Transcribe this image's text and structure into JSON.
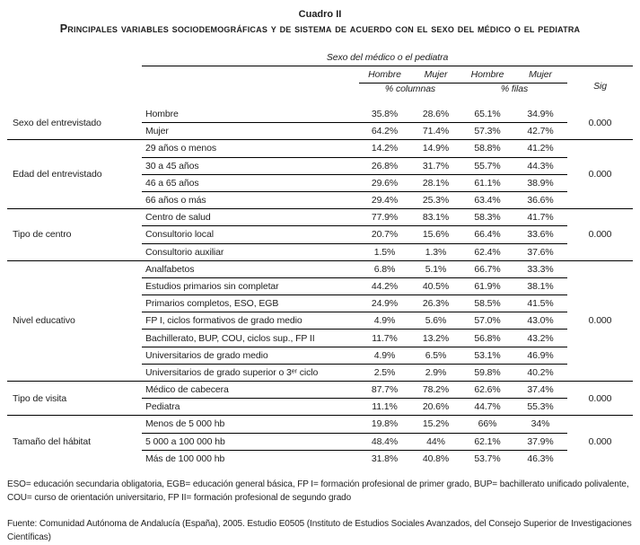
{
  "title": {
    "line1": "Cuadro II",
    "line2": "Principales variables sociodemográficas y de sistema de acuerdo con el sexo del médico o el pediatra"
  },
  "table": {
    "spanner": "Sexo del médico o el pediatra",
    "col_headers": [
      "Hombre",
      "Mujer",
      "Hombre",
      "Mujer"
    ],
    "subspanners": [
      "% columnas",
      "% filas"
    ],
    "sig_header": "Sig",
    "groups": [
      {
        "variable": "Sexo del entrevistado",
        "sig": "0.000",
        "rows": [
          {
            "category": "Hombre",
            "values": [
              "35.8%",
              "28.6%",
              "65.1%",
              "34.9%"
            ]
          },
          {
            "category": "Mujer",
            "values": [
              "64.2%",
              "71.4%",
              "57.3%",
              "42.7%"
            ]
          }
        ]
      },
      {
        "variable": "Edad del entrevistado",
        "sig": "0.000",
        "rows": [
          {
            "category": "29 años o menos",
            "values": [
              "14.2%",
              "14.9%",
              "58.8%",
              "41.2%"
            ]
          },
          {
            "category": "30 a 45 años",
            "values": [
              "26.8%",
              "31.7%",
              "55.7%",
              "44.3%"
            ]
          },
          {
            "category": "46 a 65 años",
            "values": [
              "29.6%",
              "28.1%",
              "61.1%",
              "38.9%"
            ]
          },
          {
            "category": "66 años o más",
            "values": [
              "29.4%",
              "25.3%",
              "63.4%",
              "36.6%"
            ]
          }
        ]
      },
      {
        "variable": "Tipo de centro",
        "sig": "0.000",
        "rows": [
          {
            "category": "Centro de salud",
            "values": [
              "77.9%",
              "83.1%",
              "58.3%",
              "41.7%"
            ]
          },
          {
            "category": "Consultorio local",
            "values": [
              "20.7%",
              "15.6%",
              "66.4%",
              "33.6%"
            ]
          },
          {
            "category": "Consultorio auxiliar",
            "values": [
              "1.5%",
              "1.3%",
              "62.4%",
              "37.6%"
            ]
          }
        ]
      },
      {
        "variable": "Nivel educativo",
        "sig": "0.000",
        "rows": [
          {
            "category": "Analfabetos",
            "values": [
              "6.8%",
              "5.1%",
              "66.7%",
              "33.3%"
            ]
          },
          {
            "category": "Estudios primarios sin completar",
            "values": [
              "44.2%",
              "40.5%",
              "61.9%",
              "38.1%"
            ]
          },
          {
            "category": "Primarios completos, ESO, EGB",
            "values": [
              "24.9%",
              "26.3%",
              "58.5%",
              "41.5%"
            ]
          },
          {
            "category": "FP I, ciclos formativos de grado medio",
            "values": [
              "4.9%",
              "5.6%",
              "57.0%",
              "43.0%"
            ]
          },
          {
            "category": "Bachillerato, BUP, COU, ciclos sup., FP II",
            "values": [
              "11.7%",
              "13.2%",
              "56.8%",
              "43.2%"
            ]
          },
          {
            "category": "Universitarios de grado medio",
            "values": [
              "4.9%",
              "6.5%",
              "53.1%",
              "46.9%"
            ]
          },
          {
            "category": "Universitarios de grado superior o 3ᵉʳ ciclo",
            "values": [
              "2.5%",
              "2.9%",
              "59.8%",
              "40.2%"
            ]
          }
        ]
      },
      {
        "variable": "Tipo de visita",
        "sig": "0.000",
        "rows": [
          {
            "category": "Médico de cabecera",
            "values": [
              "87.7%",
              "78.2%",
              "62.6%",
              "37.4%"
            ]
          },
          {
            "category": "Pediatra",
            "values": [
              "11.1%",
              "20.6%",
              "44.7%",
              "55.3%"
            ]
          }
        ]
      },
      {
        "variable": "Tamaño del hábitat",
        "sig": "0.000",
        "rows": [
          {
            "category": "Menos de 5 000 hb",
            "values": [
              "19.8%",
              "15.2%",
              "66%",
              "34%"
            ]
          },
          {
            "category": "5 000 a 100 000 hb",
            "values": [
              "48.4%",
              "44%",
              "62.1%",
              "37.9%"
            ]
          },
          {
            "category": "Más de 100 000 hb",
            "values": [
              "31.8%",
              "40.8%",
              "53.7%",
              "46.3%"
            ]
          }
        ]
      }
    ]
  },
  "footnotes": {
    "abbreviations": "ESO= educación secundaria obligatoria, EGB= educación general básica, FP I= formación profesional de primer grado, BUP= bachillerato unificado polivalente, COU= curso de orientación universitario, FP II= formación profesional de segundo grado",
    "source": "Fuente: Comunidad Autónoma de Andalucía (España), 2005. Estudio E0505 (Instituto de Estudios Sociales Avanzados, del Consejo Superior de Investigaciones Científicas)"
  }
}
